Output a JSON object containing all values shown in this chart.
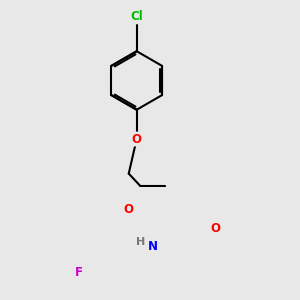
{
  "background_color": "#e8e8e8",
  "bond_color": "#000000",
  "bond_width": 1.5,
  "atom_colors": {
    "Cl": "#00bb00",
    "O": "#ff0000",
    "N": "#0000ff",
    "F": "#cc00cc",
    "H": "#777777"
  },
  "font_size": 8.5,
  "figsize": [
    3.0,
    3.0
  ],
  "dpi": 100
}
